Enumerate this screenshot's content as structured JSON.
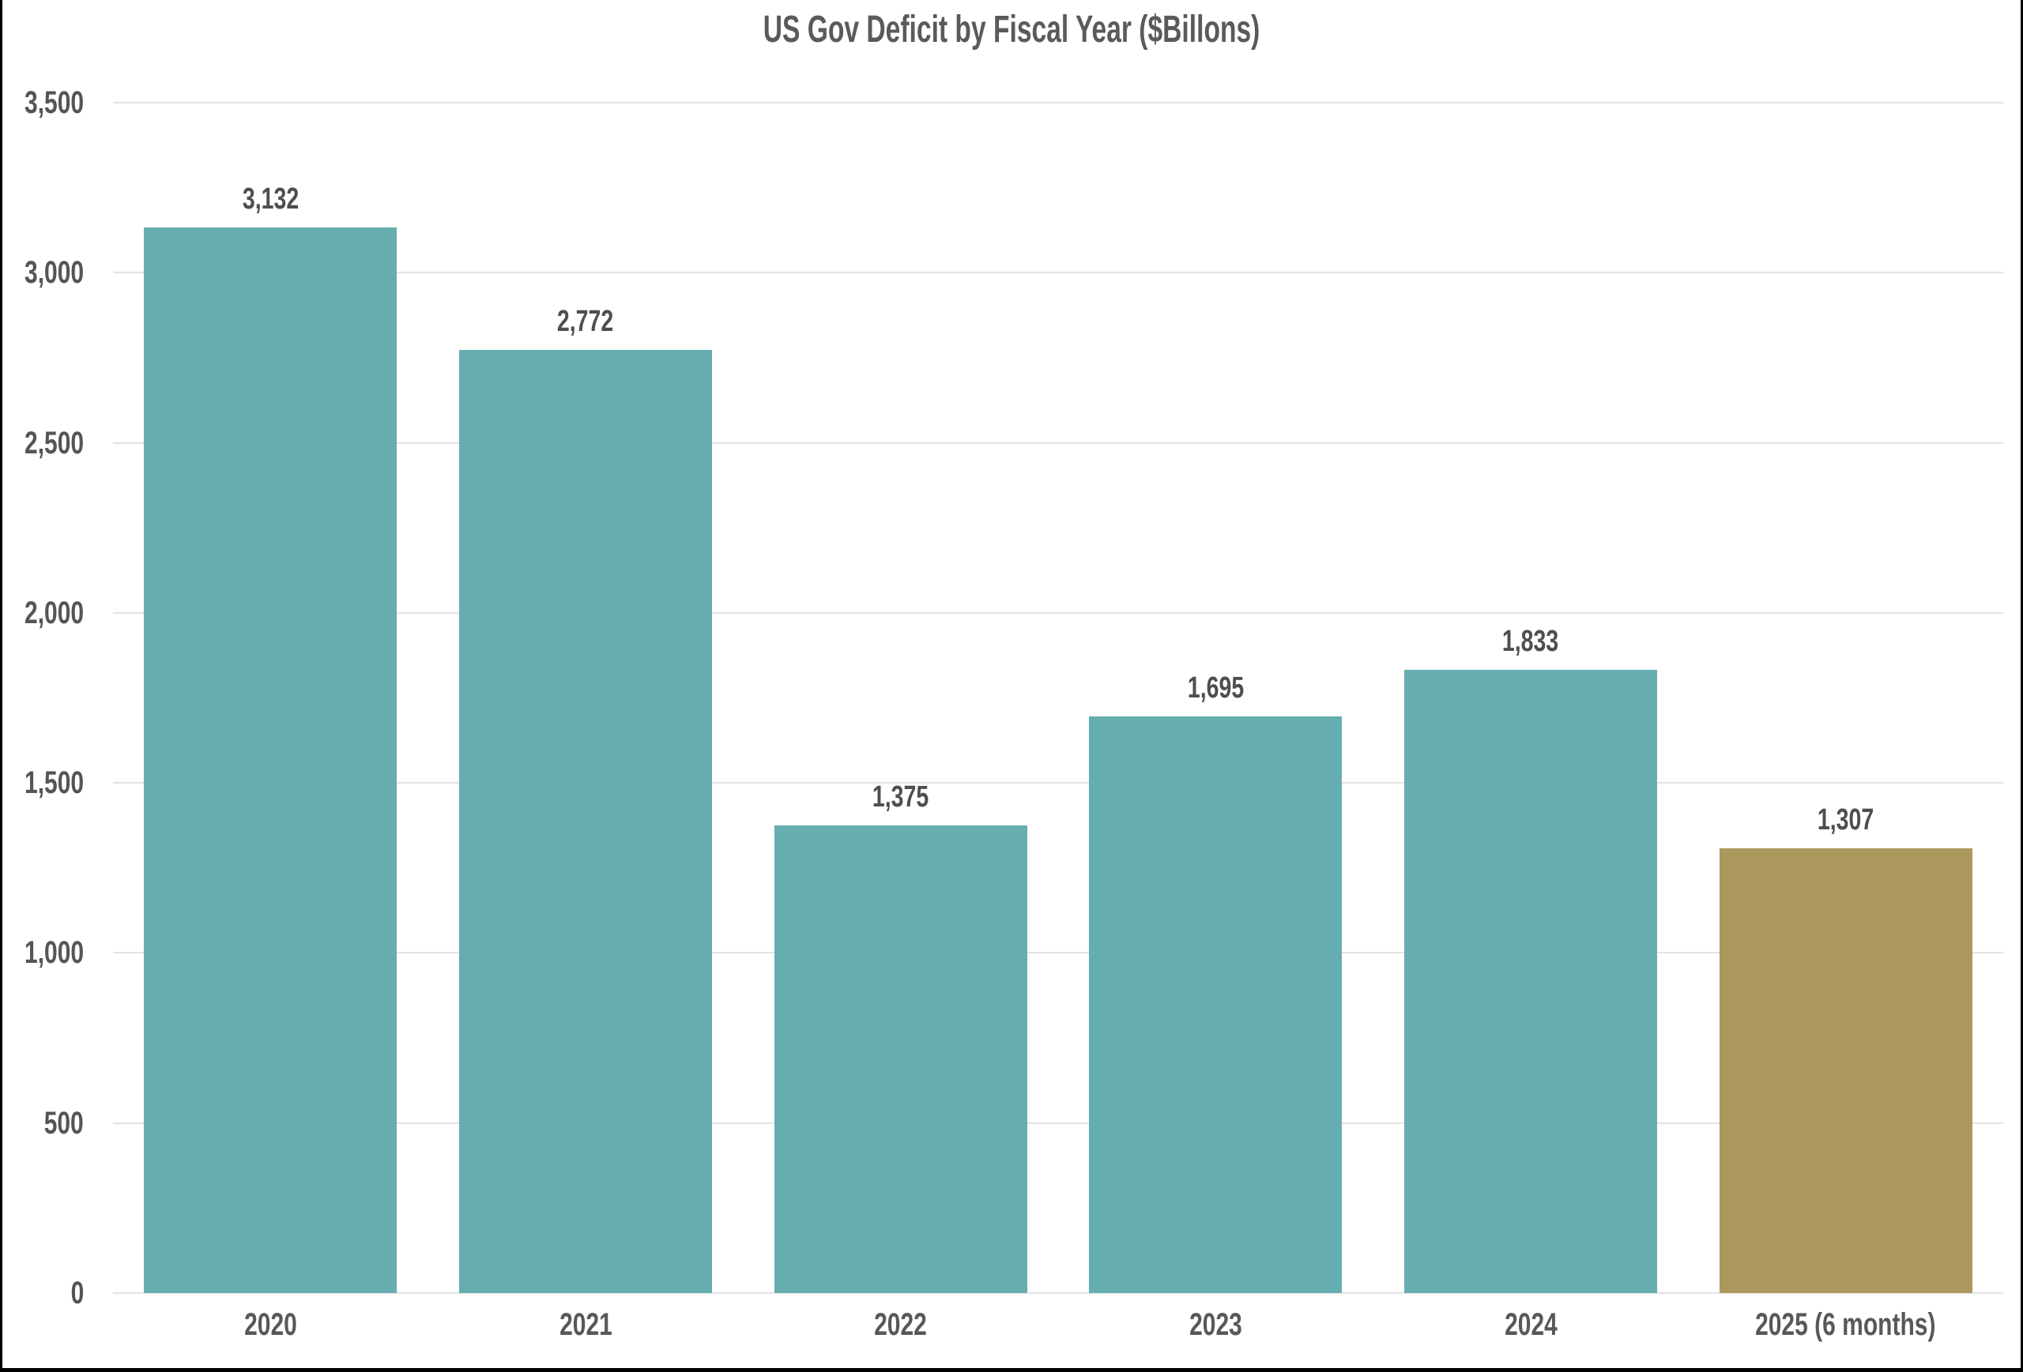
{
  "title": "US Gov Deficit by Fiscal Year ($Billons)",
  "chart_data": {
    "type": "bar",
    "title": "US Gov Deficit by Fiscal Year ($Billons)",
    "xlabel": "",
    "ylabel": "",
    "categories": [
      "2020",
      "2021",
      "2022",
      "2023",
      "2024",
      "2025 (6 months)"
    ],
    "values": [
      3132,
      2772,
      1375,
      1695,
      1833,
      1307
    ],
    "value_labels": [
      "3,132",
      "2,772",
      "1,375",
      "1,695",
      "1,833",
      "1,307"
    ],
    "bar_colors": [
      "#66adb0",
      "#66adb0",
      "#66adb0",
      "#66adb0",
      "#66adb0",
      "#ab985d"
    ],
    "ylim": [
      0,
      3500
    ],
    "ytick_step": 500,
    "ytick_labels": [
      "0",
      "500",
      "1,000",
      "1,500",
      "2,000",
      "2,500",
      "3,000",
      "3,500"
    ],
    "grid": true,
    "legend": false,
    "colors": {
      "bar_teal": "#66adb0",
      "bar_gold": "#ab985d",
      "text": "#555555",
      "gridline": "#e3e3e3",
      "background": "#ffffff"
    }
  }
}
